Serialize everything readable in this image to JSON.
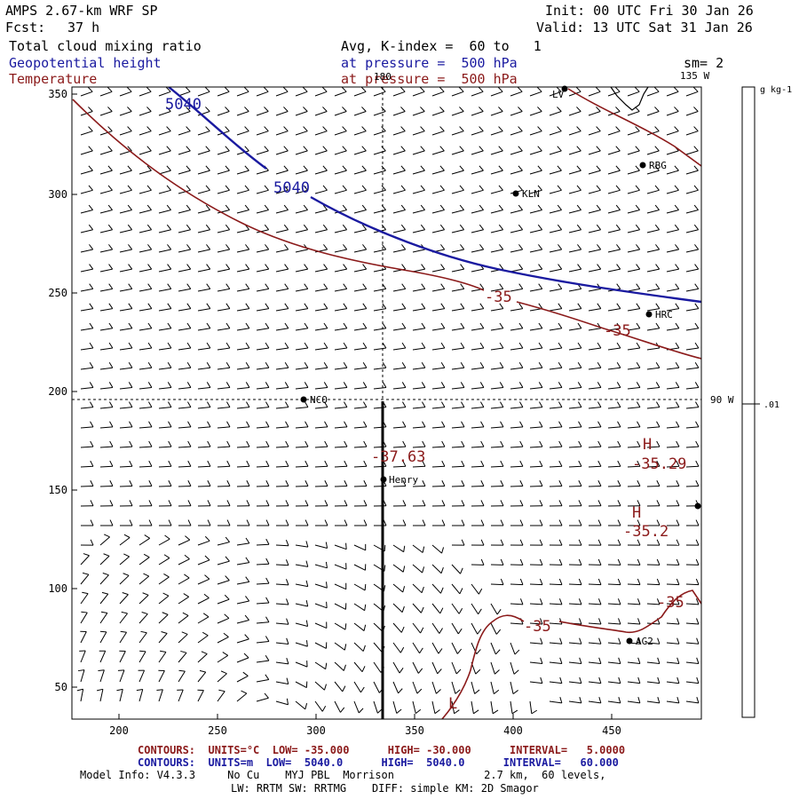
{
  "header": {
    "model": "AMPS 2.67-km WRF SP",
    "init": "Init: 00 UTC Fri 30 Jan 26",
    "fcst_label": "Fcst:",
    "fcst_value": "37 h",
    "valid": "Valid: 13 UTC Sat 31 Jan 26",
    "field1": "Total cloud mixing ratio",
    "field1_desc": "Avg, K-index =  60 to   1",
    "field2": "Geopotential height",
    "field2_desc": "at pressure =  500 hPa",
    "smoothing": "sm= 2",
    "field3": "Temperature",
    "field3_desc": "at pressure =  500 hPa"
  },
  "colors": {
    "height": "#1a1aa0",
    "temperature": "#8b1a1a",
    "barbs": "#000000",
    "coast": "#000000"
  },
  "axes": {
    "x_ticks": [
      "200",
      "250",
      "300",
      "350",
      "400",
      "450"
    ],
    "y_ticks": [
      "350",
      "300",
      "250",
      "200",
      "150",
      "100",
      "50"
    ]
  },
  "gridlines": {
    "meridian_180": "180",
    "meridian_135": "135 W",
    "meridian_90": "90 W"
  },
  "contour_labels": {
    "height": [
      "5040",
      "5040"
    ],
    "temperature": [
      "-35",
      "-35",
      "-35",
      "-35",
      "-35"
    ],
    "highs": [
      {
        "letter": "H",
        "value": "-35.29"
      },
      {
        "letter": "H",
        "value": "-35.2"
      }
    ],
    "low_letter": "L",
    "point_value": "-37.63"
  },
  "stations": [
    "LV",
    "RBG",
    "KLN",
    "HRC",
    "NCO",
    "Henry",
    "AG2"
  ],
  "colorbar": {
    "units": "g kg-1",
    "tick": ".01"
  },
  "footer": {
    "red_line": "CONTOURS:  UNITS=°C  LOW= -35.000      HIGH= -30.000      INTERVAL=   5.0000",
    "blue_line": "CONTOURS:  UNITS=m  LOW=  5040.0      HIGH=  5040.0      INTERVAL=   60.000",
    "model_info": "Model Info: V4.3.3     No Cu    MYJ PBL  Morrison              2.7 km,  60 levels,",
    "physics": "LW: RRTM SW: RRTMG    DIFF: simple KM: 2D Smagor"
  }
}
